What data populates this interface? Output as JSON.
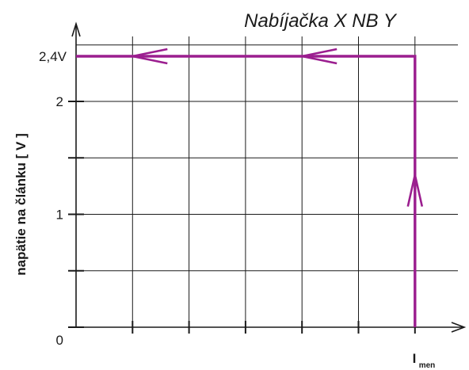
{
  "chart_data": {
    "type": "line",
    "title": "Nabíjačka X NB Y",
    "ylabel": "napätie na článku  [ V ]",
    "xlabel": {
      "main": "I",
      "sub": "men"
    },
    "ylim": [
      0,
      2.5
    ],
    "xlim": [
      0,
      6.3
    ],
    "y_ticks": [
      {
        "value": 0,
        "label": "0"
      },
      {
        "value": 1,
        "label": "1"
      },
      {
        "value": 2,
        "label": "2"
      },
      {
        "value": 2.4,
        "label": "2,4V"
      }
    ],
    "series": [
      {
        "color": "#9b1e8f",
        "points": [
          [
            6,
            0
          ],
          [
            6,
            2.4
          ],
          [
            0,
            2.4
          ]
        ],
        "arrows": [
          {
            "at": [
              6,
              1.35
            ],
            "direction": "up"
          },
          {
            "at": [
              4,
              2.4
            ],
            "direction": "left"
          },
          {
            "at": [
              1,
              2.4
            ],
            "direction": "left"
          }
        ]
      }
    ]
  }
}
